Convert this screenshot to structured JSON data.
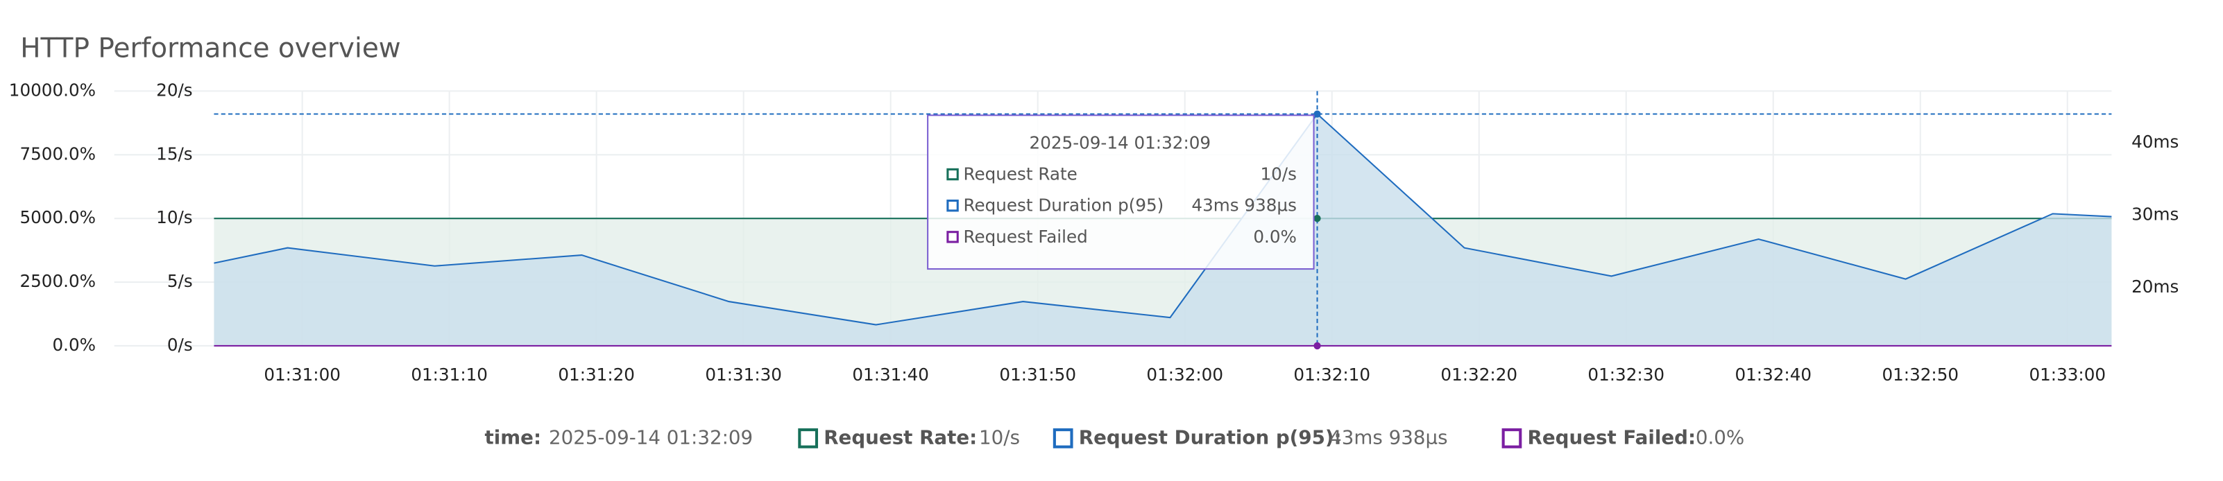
{
  "chart_data": {
    "type": "line",
    "title": "HTTP Performance overview",
    "x": [
      "01:30:54",
      "01:30:59",
      "01:31:09",
      "01:31:19",
      "01:31:29",
      "01:31:39",
      "01:31:49",
      "01:31:59",
      "01:32:09",
      "01:32:19",
      "01:32:29",
      "01:32:39",
      "01:32:49",
      "01:32:59",
      "01:33:03"
    ],
    "xlim": [
      "01:30:54",
      "01:33:03"
    ],
    "xticks": [
      "01:31:00",
      "01:31:10",
      "01:31:20",
      "01:31:30",
      "01:31:40",
      "01:31:50",
      "01:32:00",
      "01:32:10",
      "01:32:20",
      "01:32:30",
      "01:32:40",
      "01:32:50",
      "01:33:00"
    ],
    "ylim": [
      0,
      10000
    ],
    "yticks": [
      {
        "value": 0,
        "label": "0.0%"
      },
      {
        "value": 2500,
        "label": "2500.0%"
      },
      {
        "value": 5000,
        "label": "5000.0%"
      },
      {
        "value": 7500,
        "label": "7500.0%"
      },
      {
        "value": 10000,
        "label": "10000.0%"
      }
    ],
    "y2lim": [
      0,
      20
    ],
    "y2ticks": [
      {
        "value": 0,
        "label": "0/s"
      },
      {
        "value": 5,
        "label": "5/s"
      },
      {
        "value": 10,
        "label": "10/s"
      },
      {
        "value": 15,
        "label": "15/s"
      },
      {
        "value": 20,
        "label": "20/s"
      }
    ],
    "y3lim": [
      12,
      47.1
    ],
    "y3ticks": [
      {
        "value": 20,
        "label": "20ms"
      },
      {
        "value": 30,
        "label": "30ms"
      },
      {
        "value": 40,
        "label": "40ms"
      }
    ],
    "grid": true,
    "series": [
      {
        "name": "Request Rate",
        "color": "#17705a",
        "fill": "#e3efea",
        "axis": "y2",
        "values": [
          10,
          10,
          10,
          10,
          10,
          10,
          10,
          10,
          10,
          10,
          10,
          10,
          10,
          10,
          10
        ],
        "value_labels": [
          null,
          null,
          null,
          null,
          null,
          null,
          null,
          null,
          "10/s",
          null,
          null,
          null,
          null,
          null,
          null
        ]
      },
      {
        "name": "Request Duration p(95)",
        "color": "#1f6cbf",
        "fill": "#c9deec",
        "axis": "y3",
        "values": [
          23.4,
          25.5,
          23.0,
          24.5,
          18.1,
          14.9,
          18.1,
          15.9,
          43.938,
          25.5,
          21.6,
          26.7,
          21.2,
          30.2,
          29.8
        ],
        "value_labels": [
          null,
          null,
          null,
          null,
          null,
          null,
          null,
          null,
          "43ms 938µs",
          null,
          null,
          null,
          null,
          null,
          null
        ]
      },
      {
        "name": "Request Failed",
        "color": "#7b1fa2",
        "axis": "y",
        "values": [
          0,
          0,
          0,
          0,
          0,
          0,
          0,
          0,
          0,
          0,
          0,
          0,
          0,
          0,
          0
        ],
        "value_labels": [
          null,
          null,
          null,
          null,
          null,
          null,
          null,
          null,
          "0.0%",
          null,
          null,
          null,
          null,
          null,
          null
        ]
      }
    ],
    "hover_index": 8,
    "hover_time": "2025-09-14 01:32:09",
    "legend_time_label": "time",
    "legend_separator": ":"
  }
}
